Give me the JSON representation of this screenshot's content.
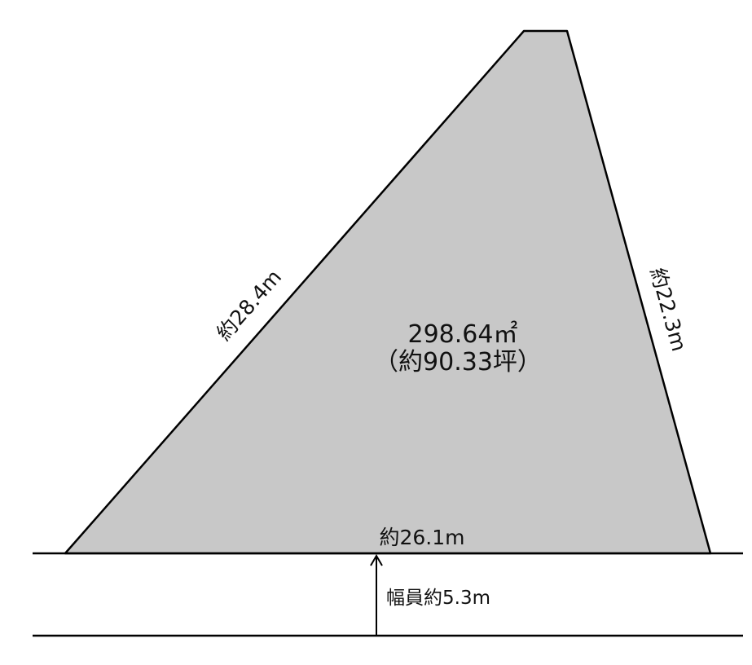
{
  "colors": {
    "background": "#ffffff",
    "lot_fill": "#c8c8c8",
    "line": "#000000",
    "text": "#111111"
  },
  "lot": {
    "area_sqm": "298.64㎡",
    "area_tsubo": "（約90.33坪）"
  },
  "edges": {
    "left": "約28.4m",
    "right": "約22.3m",
    "bottom": "約26.1m"
  },
  "road": {
    "width_label": "幅員約5.3m"
  }
}
